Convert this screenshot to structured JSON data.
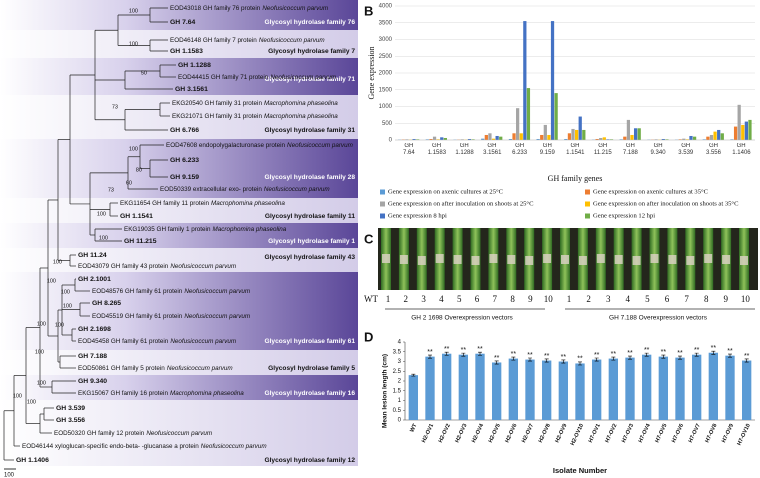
{
  "figure": {
    "panel_labels": [
      "A",
      "B",
      "C",
      "D"
    ]
  },
  "tree": {
    "leaves": [
      {
        "text": "EOD43018 GH family 76 protein",
        "species": "Neofusicoccum parvum"
      },
      {
        "text": "GH 7.64",
        "bold": true
      },
      {
        "text": "EOD46148 GH family 7 protein",
        "species": "Neofusicoccum parvum"
      },
      {
        "text": "GH 1.1583",
        "bold": true
      },
      {
        "text": "GH 1.1288",
        "bold": true
      },
      {
        "text": "EOD44415 GH family 71 protein",
        "species": "Neofusicoccum parvum"
      },
      {
        "text": "GH 3.1561",
        "bold": true
      },
      {
        "text": "EKG20540 GH family 31 protein",
        "species": "Macrophomina phaseolina"
      },
      {
        "text": "EKG21071 GH family 31 protein",
        "species": "Macrophomina phaseolina"
      },
      {
        "text": "GH 6.766",
        "bold": true
      },
      {
        "text": "EOD47608 endopolygalacturonase protein",
        "species": "Neofusicoccum parvum"
      },
      {
        "text": "GH 6.233",
        "bold": true
      },
      {
        "text": "GH 9.159",
        "bold": true
      },
      {
        "text": "EOD50339 extracellular exo- protein",
        "species": "Neofusicoccum parvum"
      },
      {
        "text": "EKG11654 GH family 11 protein",
        "species": "Macrophomina phaseolina"
      },
      {
        "text": "GH 1.1541",
        "bold": true
      },
      {
        "text": "EKG19035 GH family 1 protein",
        "species": "Macrophomina phaseolina"
      },
      {
        "text": "GH 11.215",
        "bold": true
      },
      {
        "text": "GH 11.24",
        "bold": true
      },
      {
        "text": "EOD43079 GH family 43 protein",
        "species": "Neofusicoccum parvum"
      },
      {
        "text": "GH 2.1001",
        "bold": true
      },
      {
        "text": "EOD48576 GH family 61 protein",
        "species": "Neofusicoccum parvum"
      },
      {
        "text": "GH 8.265",
        "bold": true
      },
      {
        "text": "EOD45519 GH family 61 protein",
        "species": "Neofusicoccum parvum"
      },
      {
        "text": "GH 2.1698",
        "bold": true
      },
      {
        "text": "EOD45458 GH family 61 protein",
        "species": "Neofusicoccum parvum"
      },
      {
        "text": "GH 7.188",
        "bold": true
      },
      {
        "text": "EOD50861 GH family 5 protein",
        "species": "Neofusicoccum parvum"
      },
      {
        "text": "GH 9.340",
        "bold": true
      },
      {
        "text": "EKG15067 GH family 16 protein",
        "species": "Macrophomina phaseolina"
      },
      {
        "text": "GH 3.539",
        "bold": true
      },
      {
        "text": "GH 3.556",
        "bold": true
      },
      {
        "text": "EOD50320 GH family 12 protein",
        "species": "Neofusicoccum parvum"
      },
      {
        "text": "EOD46144 xyloglucan-specific endo-beta- -glucanase a protein",
        "species": "Neofusicoccum parvum"
      },
      {
        "text": "GH 1.1406",
        "bold": true
      }
    ],
    "families": [
      {
        "label": "Glycosyl hydrolase family 76",
        "shade": "dark"
      },
      {
        "label": "Glycosyl hydrolase family 7",
        "shade": "light"
      },
      {
        "label": "Glycosyl hydrolase family 71",
        "shade": "dark"
      },
      {
        "label": "Glycosyl hydrolase family 31",
        "shade": "light"
      },
      {
        "label": "Glycosyl hydrolase family 28",
        "shade": "dark"
      },
      {
        "label": "Glycosyl hydrolase family 11",
        "shade": "light"
      },
      {
        "label": "Glycosyl hydrolase family 1",
        "shade": "dark"
      },
      {
        "label": "Glycosyl hydrolase family 43",
        "shade": "light"
      },
      {
        "label": "Glycosyl hydrolase family 61",
        "shade": "dark"
      },
      {
        "label": "Glycosyl hydrolase family 5",
        "shade": "light"
      },
      {
        "label": "Glycosyl hydrolase family 16",
        "shade": "dark"
      },
      {
        "label": "Glycosyl hydrolase family 12",
        "shade": "light"
      }
    ],
    "supports": [
      "100",
      "100",
      "50",
      "73",
      "100",
      "80",
      "60",
      "73",
      "100",
      "100",
      "100",
      "100",
      "100",
      "100",
      "100",
      "100",
      "100",
      "100",
      "100",
      "100"
    ],
    "scale_label": "100"
  },
  "chart_data": [
    {
      "type": "bar",
      "xlabel": "GH family genes",
      "ylabel": "Gene expression",
      "categories": [
        "GH 7.64",
        "GH 1.1583",
        "GH 1.1288",
        "GH 3.1561",
        "GH 6.233",
        "GH 9.159",
        "GH 1.1541",
        "GH 11.215",
        "GH 7.188",
        "GH 9.340",
        "GH 3.539",
        "GH 3.556",
        "GH 1.1406"
      ],
      "series": [
        {
          "name": "Gene expression on axenic cultures at 25°C",
          "color": "#5b9bd5",
          "values": [
            10,
            20,
            10,
            40,
            30,
            30,
            30,
            10,
            20,
            10,
            10,
            20,
            20
          ]
        },
        {
          "name": "Gene expression on axenic cultures at 35°C",
          "color": "#ed7d31",
          "values": [
            15,
            30,
            10,
            150,
            200,
            150,
            200,
            30,
            100,
            10,
            20,
            100,
            400
          ]
        },
        {
          "name": "Gene expression on after inoculation on shoots at 25°C",
          "color": "#a5a5a5",
          "values": [
            20,
            100,
            20,
            200,
            950,
            450,
            330,
            60,
            600,
            20,
            40,
            150,
            1050
          ]
        },
        {
          "name": "Gene expression on after inoculation on shoots at 35°C",
          "color": "#ffc000",
          "values": [
            10,
            20,
            10,
            40,
            200,
            150,
            300,
            80,
            150,
            10,
            20,
            250,
            450
          ]
        },
        {
          "name": "Gene expression 8 hpi",
          "color": "#4472c4",
          "values": [
            30,
            80,
            30,
            120,
            3550,
            3550,
            700,
            20,
            350,
            30,
            120,
            300,
            550
          ]
        },
        {
          "name": "Gene expression 12 hpi",
          "color": "#70ad47",
          "values": [
            20,
            60,
            20,
            100,
            1550,
            1400,
            300,
            20,
            350,
            20,
            100,
            200,
            600
          ]
        }
      ],
      "ylim": [
        0,
        4000
      ],
      "yticks": [
        0,
        500,
        1000,
        1500,
        2000,
        2500,
        3000,
        3500,
        4000
      ],
      "grid": true
    },
    {
      "type": "bar",
      "xlabel": "Isolate Number",
      "ylabel": "Mean lesion length (cm)",
      "color": "#5b9bd5",
      "categories": [
        "WT",
        "H2-OV1",
        "H2-OV2",
        "H2-OV3",
        "H2-OV4",
        "H2-OV5",
        "H2-OV6",
        "H2-OV7",
        "H2-OV8",
        "H2-OV9",
        "H2-OV10",
        "H7-OV1",
        "H7-OV2",
        "H7-OV3",
        "H7-OV4",
        "H7-OV5",
        "H7-OV6",
        "H7-OV7",
        "H7-OV8",
        "H7-OV9",
        "H7-OV10"
      ],
      "values": [
        2.3,
        3.25,
        3.4,
        3.35,
        3.4,
        2.95,
        3.15,
        3.1,
        3.05,
        3.0,
        2.9,
        3.1,
        3.15,
        3.2,
        3.35,
        3.25,
        3.2,
        3.35,
        3.45,
        3.3,
        3.05
      ],
      "errors": [
        0.05,
        0.08,
        0.08,
        0.08,
        0.08,
        0.08,
        0.08,
        0.08,
        0.08,
        0.08,
        0.08,
        0.08,
        0.08,
        0.08,
        0.08,
        0.08,
        0.08,
        0.08,
        0.08,
        0.08,
        0.08
      ],
      "significance": "**",
      "significant": [
        false,
        true,
        true,
        true,
        true,
        true,
        true,
        true,
        true,
        true,
        true,
        true,
        true,
        true,
        true,
        true,
        true,
        true,
        true,
        true,
        true
      ],
      "ylim": [
        0,
        4
      ],
      "yticks": [
        0,
        0.5,
        1,
        1.5,
        2,
        2.5,
        3,
        3.5,
        4
      ],
      "grid": false
    }
  ],
  "photo": {
    "labels": [
      "WT",
      "1",
      "2",
      "3",
      "4",
      "5",
      "6",
      "7",
      "8",
      "9",
      "10",
      "1",
      "2",
      "3",
      "4",
      "5",
      "6",
      "7",
      "8",
      "9",
      "10"
    ],
    "captions": [
      "GH 2 1698 Overexpression vectors",
      "GH 7.188 Overexpression vectors"
    ]
  }
}
